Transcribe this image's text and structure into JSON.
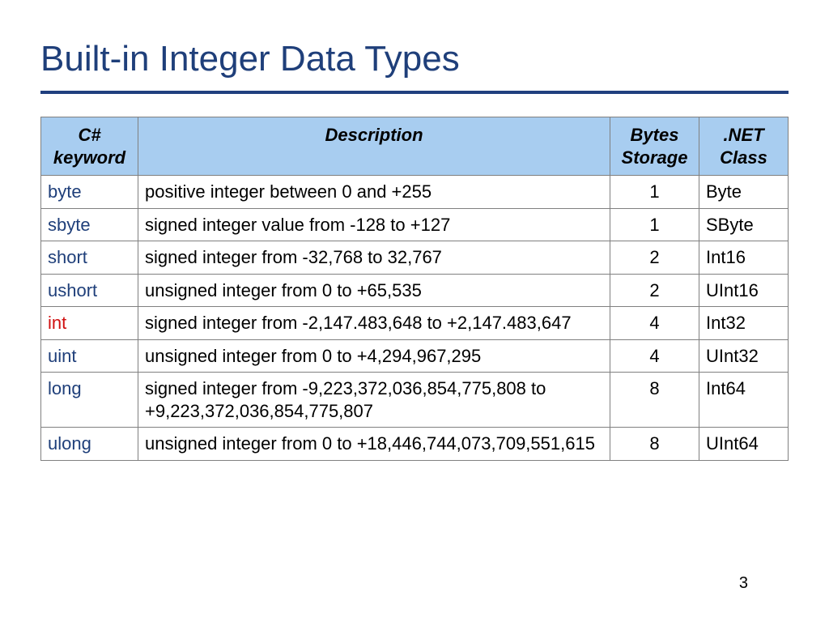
{
  "title": "Built-in Integer Data Types",
  "page_number": "3",
  "colors": {
    "title_color": "#1f3f7a",
    "rule_color": "#203f7f",
    "header_bg": "#a8cdf0",
    "border_color": "#808080",
    "keyword_color": "#1f3f7a",
    "highlight_keyword_color": "#d01010",
    "background": "#ffffff"
  },
  "table": {
    "headers": {
      "keyword": "C# keyword",
      "description": "Description",
      "bytes": "Bytes Storage",
      "netclass": ".NET Class"
    },
    "rows": [
      {
        "keyword": "byte",
        "highlight": false,
        "description": "positive integer between 0 and +255",
        "bytes": "1",
        "netclass": "Byte"
      },
      {
        "keyword": "sbyte",
        "highlight": false,
        "description": "signed integer value from -128 to +127",
        "bytes": "1",
        "netclass": "SByte"
      },
      {
        "keyword": "short",
        "highlight": false,
        "description": "signed integer from -32,768 to 32,767",
        "bytes": "2",
        "netclass": "Int16"
      },
      {
        "keyword": "ushort",
        "highlight": false,
        "description": "unsigned integer from 0 to +65,535",
        "bytes": "2",
        "netclass": "UInt16"
      },
      {
        "keyword": "int",
        "highlight": true,
        "description": "signed integer from -2,147.483,648 to +2,147.483,647",
        "bytes": "4",
        "netclass": "Int32"
      },
      {
        "keyword": "uint",
        "highlight": false,
        "description": "unsigned integer from 0 to +4,294,967,295",
        "bytes": "4",
        "netclass": "UInt32"
      },
      {
        "keyword": "long",
        "highlight": false,
        "description": "signed integer from -9,223,372,036,854,775,808 to +9,223,372,036,854,775,807",
        "bytes": "8",
        "netclass": "Int64"
      },
      {
        "keyword": "ulong",
        "highlight": false,
        "description": "unsigned integer from 0 to +18,446,744,073,709,551,615",
        "bytes": "8",
        "netclass": "UInt64"
      }
    ]
  }
}
